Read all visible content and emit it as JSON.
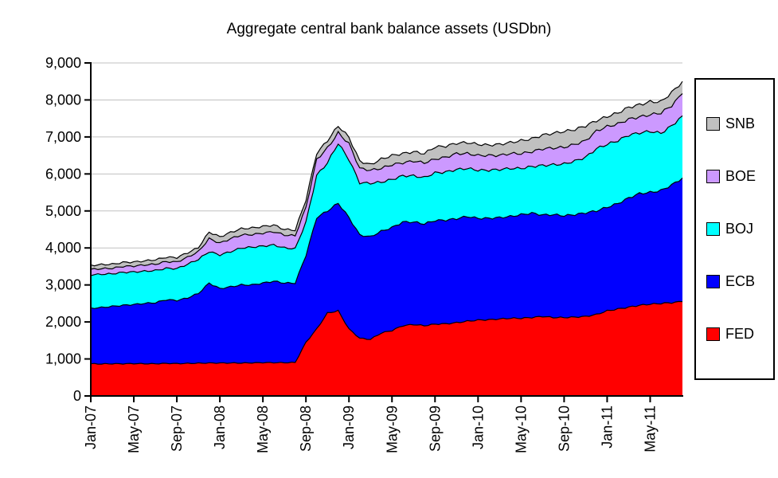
{
  "page": {
    "background": "#FFFFFF"
  },
  "chart_data": {
    "type": "area",
    "stacked": true,
    "title": "Aggregate central bank balance assets (USDbn)",
    "unit": "USDbn",
    "grid": "horizontal-gridlines-on",
    "gridline_color": "#C0C0C0",
    "outline_color": "#000000",
    "axis_color": "#000000",
    "x": {
      "months": [
        "Jan-07",
        "Feb-07",
        "Mar-07",
        "Apr-07",
        "May-07",
        "Jun-07",
        "Jul-07",
        "Aug-07",
        "Sep-07",
        "Oct-07",
        "Nov-07",
        "Dec-07",
        "Jan-08",
        "Feb-08",
        "Mar-08",
        "Apr-08",
        "May-08",
        "Jun-08",
        "Jul-08",
        "Aug-08",
        "Sep-08",
        "Oct-08",
        "Nov-08",
        "Dec-08",
        "Jan-09",
        "Feb-09",
        "Mar-09",
        "Apr-09",
        "May-09",
        "Jun-09",
        "Jul-09",
        "Aug-09",
        "Sep-09",
        "Oct-09",
        "Nov-09",
        "Dec-09",
        "Jan-10",
        "Feb-10",
        "Mar-10",
        "Apr-10",
        "May-10",
        "Jun-10",
        "Jul-10",
        "Aug-10",
        "Sep-10",
        "Oct-10",
        "Nov-10",
        "Dec-10",
        "Jan-11",
        "Feb-11",
        "Mar-11",
        "Apr-11",
        "May-11",
        "Jun-11",
        "Jul-11",
        "Aug-11"
      ],
      "tick_labels": [
        "Jan-07",
        "May-07",
        "Sep-07",
        "Jan-08",
        "May-08",
        "Sep-08",
        "Jan-09",
        "May-09",
        "Sep-09",
        "Jan-10",
        "May-10",
        "Sep-10",
        "Jan-11",
        "May-11"
      ],
      "tick_every": 4,
      "label_rotation_deg": -90
    },
    "y": {
      "min": 0,
      "max": 9000,
      "tick_interval": 1000,
      "tick_labels": [
        "0",
        "1,000",
        "2,000",
        "3,000",
        "4,000",
        "5,000",
        "6,000",
        "7,000",
        "8,000",
        "9,000"
      ]
    },
    "legend": {
      "position": "right",
      "entries": [
        {
          "label": "SNB",
          "color": "#C0C0C0"
        },
        {
          "label": "BOE",
          "color": "#CC99FF"
        },
        {
          "label": "BOJ",
          "color": "#00FFFF"
        },
        {
          "label": "ECB",
          "color": "#0000FF"
        },
        {
          "label": "FED",
          "color": "#FF0000"
        }
      ]
    },
    "stack_order_bottom_to_top": [
      "FED",
      "ECB",
      "BOJ",
      "BOE",
      "SNB"
    ],
    "series": [
      {
        "name": "FED",
        "color": "#FF0000",
        "values": [
          870,
          865,
          870,
          870,
          875,
          870,
          870,
          880,
          875,
          880,
          885,
          890,
          890,
          890,
          890,
          895,
          900,
          900,
          900,
          905,
          1450,
          1810,
          2240,
          2300,
          1810,
          1560,
          1530,
          1700,
          1770,
          1900,
          1930,
          1900,
          1940,
          1950,
          1980,
          2020,
          2050,
          2060,
          2080,
          2100,
          2100,
          2120,
          2150,
          2120,
          2120,
          2130,
          2150,
          2200,
          2300,
          2350,
          2400,
          2450,
          2480,
          2500,
          2520,
          2550
        ]
      },
      {
        "name": "ECB",
        "color": "#0000FF",
        "values": [
          1500,
          1525,
          1550,
          1580,
          1595,
          1630,
          1650,
          1720,
          1705,
          1770,
          1885,
          2160,
          2010,
          2060,
          2110,
          2105,
          2150,
          2200,
          2150,
          2145,
          2350,
          3010,
          2760,
          2910,
          3010,
          2790,
          2770,
          2750,
          2780,
          2800,
          2770,
          2750,
          2800,
          2800,
          2810,
          2830,
          2750,
          2740,
          2740,
          2750,
          2800,
          2820,
          2740,
          2780,
          2750,
          2770,
          2800,
          2800,
          2800,
          2850,
          2950,
          3020,
          3020,
          3050,
          3180,
          3340
        ]
      },
      {
        "name": "BOJ",
        "color": "#00FFFF",
        "values": [
          900,
          900,
          880,
          890,
          880,
          870,
          870,
          850,
          860,
          910,
          920,
          850,
          910,
          950,
          1000,
          1020,
          1000,
          980,
          950,
          930,
          900,
          1140,
          1300,
          1620,
          1570,
          1410,
          1450,
          1330,
          1300,
          1250,
          1250,
          1250,
          1290,
          1300,
          1330,
          1300,
          1300,
          1300,
          1300,
          1300,
          1250,
          1260,
          1340,
          1350,
          1400,
          1450,
          1500,
          1680,
          1700,
          1700,
          1700,
          1640,
          1650,
          1550,
          1600,
          1680
        ]
      },
      {
        "name": "BOE",
        "color": "#CC99FF",
        "values": [
          150,
          150,
          150,
          160,
          160,
          170,
          170,
          180,
          180,
          190,
          210,
          350,
          320,
          350,
          350,
          340,
          350,
          360,
          350,
          350,
          400,
          430,
          400,
          280,
          430,
          390,
          350,
          370,
          400,
          350,
          400,
          400,
          370,
          400,
          430,
          400,
          400,
          400,
          380,
          400,
          400,
          400,
          450,
          450,
          450,
          450,
          450,
          480,
          480,
          450,
          430,
          430,
          450,
          550,
          550,
          600
        ]
      },
      {
        "name": "SNB",
        "color": "#C0C0C0",
        "values": [
          110,
          110,
          110,
          110,
          110,
          110,
          120,
          120,
          120,
          120,
          110,
          180,
          170,
          170,
          170,
          180,
          180,
          180,
          150,
          150,
          200,
          170,
          200,
          190,
          170,
          200,
          150,
          250,
          250,
          250,
          250,
          250,
          330,
          300,
          280,
          300,
          300,
          280,
          300,
          300,
          350,
          350,
          370,
          400,
          430,
          400,
          400,
          280,
          270,
          300,
          320,
          330,
          350,
          300,
          350,
          330
        ]
      }
    ]
  }
}
